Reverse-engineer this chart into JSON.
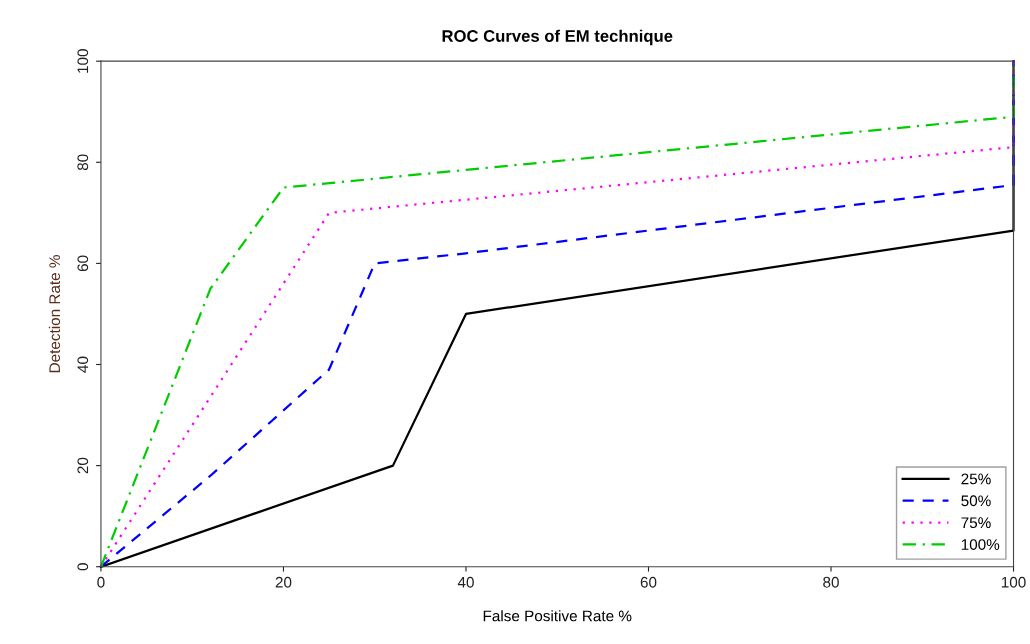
{
  "chart_data": {
    "type": "line",
    "title": "ROC Curves of EM technique",
    "xlabel": "False Positive Rate %",
    "ylabel": "Detection Rate %",
    "xlim": [
      0,
      100
    ],
    "ylim": [
      0,
      100
    ],
    "xticks": [
      0,
      20,
      40,
      60,
      80,
      100
    ],
    "yticks": [
      0,
      20,
      40,
      60,
      80,
      100
    ],
    "grid": false,
    "legend": "bottom right",
    "marker": "none",
    "series": [
      {
        "name": "25%",
        "color": "#000000",
        "line_style": "solid",
        "x": [
          0,
          32,
          40,
          100,
          100
        ],
        "values": [
          0,
          20,
          50,
          66.5,
          100
        ]
      },
      {
        "name": "50%",
        "color": "#0000ff",
        "line_style": "dashed",
        "x": [
          0,
          12,
          25,
          30,
          40,
          100,
          100
        ],
        "values": [
          0,
          18,
          39,
          60,
          62,
          75.5,
          100
        ]
      },
      {
        "name": "75%",
        "color": "#ff00ff",
        "line_style": "dotted",
        "x": [
          0,
          25,
          100,
          100
        ],
        "values": [
          0,
          70,
          83,
          100
        ]
      },
      {
        "name": "100%",
        "color": "#00cc00",
        "line_style": "dashdot",
        "x": [
          0,
          12,
          20,
          100,
          100
        ],
        "values": [
          0,
          55,
          75,
          89,
          100
        ]
      }
    ]
  }
}
